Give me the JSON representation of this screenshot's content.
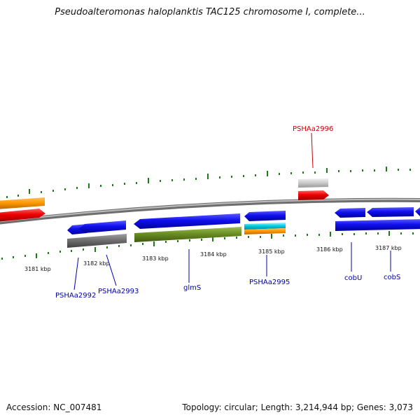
{
  "title": "Pseudoalteromonas haloplanktis TAC125 chromosome I, complete...",
  "footer": {
    "accession": "Accession: NC_007481",
    "summary": "Topology: circular; Length: 3,214,944 bp; Genes: 3,073"
  },
  "scale_labels": [
    "3181 kbp",
    "3182 kbp",
    "3183 kbp",
    "3184 kbp",
    "3185 kbp",
    "3186 kbp",
    "3187 kbp"
  ],
  "gene_labels": {
    "pshaa2996": "PSHAa2996",
    "pshaa2992": "PSHAa2992",
    "pshaa2993": "PSHAa2993",
    "glms": "glmS",
    "pshaa2995": "PSHAa2995",
    "cobu": "cobU",
    "cobs": "cobS"
  },
  "colors": {
    "backbone": "#8a8a8a",
    "tick": "#1d7a1d",
    "gene_blue": "#0a0ae6",
    "gene_red": "#e60000",
    "gene_orange": "#ff9900",
    "gene_gray": "#6b6b6b",
    "gene_lightgray": "#c8c8c8",
    "gene_olive": "#6b8e23",
    "gene_cyan": "#00d0e0",
    "label_blue": "#0000aa",
    "label_red": "#cc0000"
  }
}
